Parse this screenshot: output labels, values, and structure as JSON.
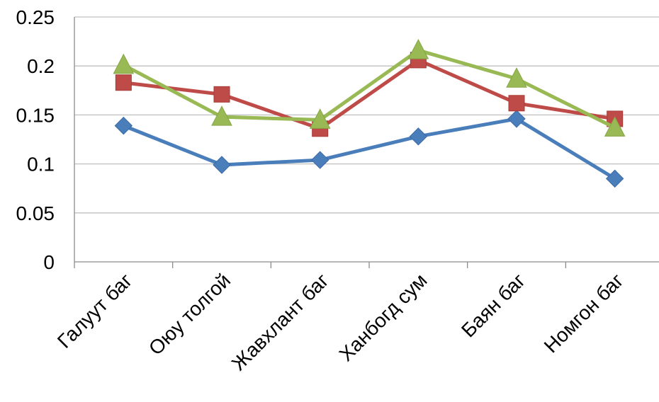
{
  "chart_data": {
    "type": "line",
    "categories": [
      "Галуут баг",
      "Оюу толгой",
      "Жавхлант баг",
      "Ханбогд сум",
      "Баян баг",
      "Номгон баг"
    ],
    "series": [
      {
        "values": [
          0.139,
          0.099,
          0.104,
          0.128,
          0.146,
          0.085
        ],
        "color": "#4a7ebb",
        "marker": "diamond"
      },
      {
        "values": [
          0.183,
          0.171,
          0.136,
          0.206,
          0.162,
          0.146
        ],
        "color": "#be4b48",
        "marker": "square"
      },
      {
        "values": [
          0.201,
          0.148,
          0.145,
          0.216,
          0.187,
          0.137
        ],
        "color": "#98b954",
        "marker": "triangle"
      }
    ],
    "y_ticks": [
      "0",
      "0.05",
      "0.1",
      "0.15",
      "0.2",
      "0.25"
    ],
    "ylim": [
      0,
      0.25
    ],
    "grid": true,
    "legend": "none"
  }
}
